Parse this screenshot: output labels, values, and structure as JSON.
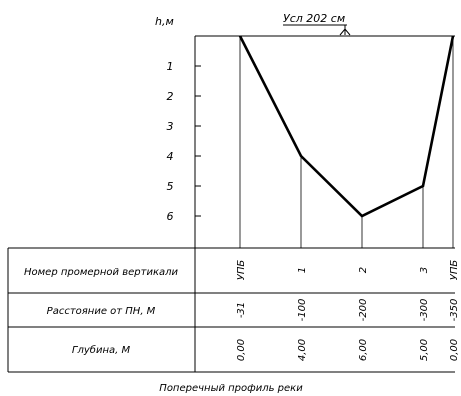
{
  "chart_data": {
    "type": "line",
    "title": "",
    "subtitle": "Усл 202 см",
    "caption": "Поперечный профиль реки",
    "ylabel": "h,м",
    "y_ticks": [
      "1",
      "2",
      "3",
      "4",
      "5",
      "6"
    ],
    "ylim": [
      0,
      6
    ],
    "y_inverted": true,
    "grid": false,
    "x": [
      31,
      100,
      200,
      300,
      350
    ],
    "y": [
      0,
      4,
      6,
      5,
      0
    ],
    "table": {
      "rows": [
        {
          "label": "Номер промерной вертикали",
          "values": [
            "УПБ",
            "1",
            "2",
            "3",
            "УПБ"
          ]
        },
        {
          "label": "Расстояние от ПН, М",
          "values": [
            "31",
            "100",
            "200",
            "300",
            "350"
          ]
        },
        {
          "label": "Глубина, М",
          "values": [
            "0,00",
            "4,00",
            "6,00",
            "5,00",
            "0,00"
          ]
        }
      ]
    }
  }
}
